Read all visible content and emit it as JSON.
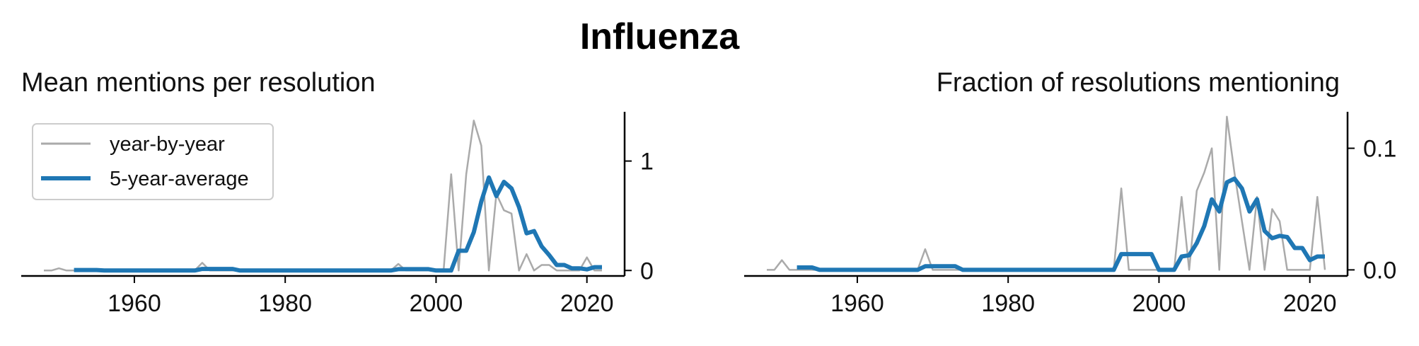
{
  "title": "Influenza",
  "chart_data": [
    {
      "type": "line",
      "title": "Mean mentions per resolution",
      "xlabel": "",
      "ylabel": "",
      "xlim": [
        1945,
        2025
      ],
      "ylim": [
        -0.05,
        1.45
      ],
      "x_ticks": [
        1960,
        1980,
        2000,
        2020
      ],
      "y_ticks": [
        0,
        1
      ],
      "y_tick_labels": [
        "0",
        "1"
      ],
      "y_axis_side": "right",
      "legend": {
        "placement": "top-left",
        "entries": [
          "year-by-year",
          "5-year-average"
        ]
      },
      "series": [
        {
          "name": "year-by-year",
          "color": "#aaaaaa",
          "x": [
            1948,
            1949,
            1950,
            1951,
            1952,
            1953,
            1954,
            1955,
            1956,
            1957,
            1958,
            1959,
            1960,
            1961,
            1962,
            1963,
            1964,
            1965,
            1966,
            1967,
            1968,
            1969,
            1970,
            1971,
            1972,
            1973,
            1974,
            1975,
            1976,
            1977,
            1978,
            1979,
            1980,
            1981,
            1982,
            1983,
            1984,
            1985,
            1986,
            1987,
            1988,
            1989,
            1990,
            1991,
            1992,
            1993,
            1994,
            1995,
            1996,
            1997,
            1998,
            1999,
            2000,
            2001,
            2002,
            2003,
            2004,
            2005,
            2006,
            2007,
            2008,
            2009,
            2010,
            2011,
            2012,
            2013,
            2014,
            2015,
            2016,
            2017,
            2018,
            2019,
            2020,
            2021,
            2022
          ],
          "values": [
            0,
            0,
            0.02,
            0,
            0,
            0,
            0,
            0,
            0,
            0,
            0,
            0,
            0,
            0,
            0,
            0,
            0,
            0,
            0,
            0,
            0,
            0.07,
            0,
            0,
            0,
            0,
            0,
            0,
            0,
            0,
            0,
            0,
            0,
            0,
            0,
            0,
            0,
            0,
            0,
            0,
            0,
            0,
            0,
            0,
            0,
            0,
            0,
            0.06,
            0,
            0,
            0,
            0,
            0,
            0,
            0.88,
            0,
            0.88,
            1.37,
            1.14,
            0,
            0.7,
            0.55,
            0.52,
            0,
            0.15,
            0,
            0.05,
            0.05,
            0,
            0,
            0,
            0,
            0.12,
            0,
            0
          ]
        },
        {
          "name": "5-year-average",
          "color": "#1f77b4",
          "x": [
            1952,
            1953,
            1954,
            1955,
            1956,
            1957,
            1958,
            1959,
            1960,
            1961,
            1962,
            1963,
            1964,
            1965,
            1966,
            1967,
            1968,
            1969,
            1970,
            1971,
            1972,
            1973,
            1974,
            1975,
            1976,
            1977,
            1978,
            1979,
            1980,
            1981,
            1982,
            1983,
            1984,
            1985,
            1986,
            1987,
            1988,
            1989,
            1990,
            1991,
            1992,
            1993,
            1994,
            1995,
            1996,
            1997,
            1998,
            1999,
            2000,
            2001,
            2002,
            2003,
            2004,
            2005,
            2006,
            2007,
            2008,
            2009,
            2010,
            2011,
            2012,
            2013,
            2014,
            2015,
            2016,
            2017,
            2018,
            2019,
            2020,
            2021,
            2022
          ],
          "values": [
            0.004,
            0.004,
            0.004,
            0.004,
            0,
            0,
            0,
            0,
            0,
            0,
            0,
            0,
            0,
            0,
            0,
            0,
            0,
            0.014,
            0.014,
            0.014,
            0.014,
            0.014,
            0,
            0,
            0,
            0,
            0,
            0,
            0,
            0,
            0,
            0,
            0,
            0,
            0,
            0,
            0,
            0,
            0,
            0,
            0,
            0,
            0,
            0.012,
            0.012,
            0.012,
            0.012,
            0.012,
            0,
            0,
            0,
            0.18,
            0.18,
            0.35,
            0.63,
            0.85,
            0.68,
            0.81,
            0.75,
            0.58,
            0.34,
            0.36,
            0.22,
            0.14,
            0.05,
            0.05,
            0.02,
            0.02,
            0.01,
            0.03,
            0.03
          ]
        }
      ]
    },
    {
      "type": "line",
      "title": "Fraction of resolutions mentioning",
      "xlabel": "",
      "ylabel": "",
      "xlim": [
        1945,
        2025
      ],
      "ylim": [
        -0.005,
        0.13
      ],
      "x_ticks": [
        1960,
        1980,
        2000,
        2020
      ],
      "y_ticks": [
        0,
        0.1
      ],
      "y_tick_labels": [
        "0.0",
        "0.1"
      ],
      "y_axis_side": "right",
      "series": [
        {
          "name": "year-by-year",
          "color": "#aaaaaa",
          "x": [
            1948,
            1949,
            1950,
            1951,
            1952,
            1953,
            1954,
            1955,
            1956,
            1957,
            1958,
            1959,
            1960,
            1961,
            1962,
            1963,
            1964,
            1965,
            1966,
            1967,
            1968,
            1969,
            1970,
            1971,
            1972,
            1973,
            1974,
            1975,
            1976,
            1977,
            1978,
            1979,
            1980,
            1981,
            1982,
            1983,
            1984,
            1985,
            1986,
            1987,
            1988,
            1989,
            1990,
            1991,
            1992,
            1993,
            1994,
            1995,
            1996,
            1997,
            1998,
            1999,
            2000,
            2001,
            2002,
            2003,
            2004,
            2005,
            2006,
            2007,
            2008,
            2009,
            2010,
            2011,
            2012,
            2013,
            2014,
            2015,
            2016,
            2017,
            2018,
            2019,
            2020,
            2021,
            2022
          ],
          "values": [
            0,
            0,
            0.008,
            0,
            0,
            0,
            0,
            0,
            0,
            0,
            0,
            0,
            0,
            0,
            0,
            0,
            0,
            0,
            0,
            0,
            0,
            0.017,
            0,
            0,
            0,
            0,
            0,
            0,
            0,
            0,
            0,
            0,
            0,
            0,
            0,
            0,
            0,
            0,
            0,
            0,
            0,
            0,
            0,
            0,
            0,
            0,
            0,
            0.067,
            0,
            0,
            0,
            0,
            0,
            0,
            0,
            0.06,
            0,
            0.065,
            0.08,
            0.1,
            0,
            0.126,
            0.08,
            0.04,
            0,
            0.06,
            0,
            0.05,
            0.04,
            0,
            0,
            0,
            0,
            0.06,
            0
          ]
        },
        {
          "name": "5-year-average",
          "color": "#1f77b4",
          "x": [
            1952,
            1953,
            1954,
            1955,
            1956,
            1957,
            1958,
            1959,
            1960,
            1961,
            1962,
            1963,
            1964,
            1965,
            1966,
            1967,
            1968,
            1969,
            1970,
            1971,
            1972,
            1973,
            1974,
            1975,
            1976,
            1977,
            1978,
            1979,
            1980,
            1981,
            1982,
            1983,
            1984,
            1985,
            1986,
            1987,
            1988,
            1989,
            1990,
            1991,
            1992,
            1993,
            1994,
            1995,
            1996,
            1997,
            1998,
            1999,
            2000,
            2001,
            2002,
            2003,
            2004,
            2005,
            2006,
            2007,
            2008,
            2009,
            2010,
            2011,
            2012,
            2013,
            2014,
            2015,
            2016,
            2017,
            2018,
            2019,
            2020,
            2021,
            2022
          ],
          "values": [
            0.002,
            0.002,
            0.002,
            0,
            0,
            0,
            0,
            0,
            0,
            0,
            0,
            0,
            0,
            0,
            0,
            0,
            0,
            0.003,
            0.003,
            0.003,
            0.003,
            0.003,
            0,
            0,
            0,
            0,
            0,
            0,
            0,
            0,
            0,
            0,
            0,
            0,
            0,
            0,
            0,
            0,
            0,
            0,
            0,
            0,
            0,
            0.013,
            0.013,
            0.013,
            0.013,
            0.013,
            0,
            0,
            0,
            0.011,
            0.012,
            0.022,
            0.036,
            0.058,
            0.048,
            0.072,
            0.075,
            0.067,
            0.048,
            0.058,
            0.032,
            0.026,
            0.028,
            0.027,
            0.018,
            0.018,
            0.008,
            0.011,
            0.011
          ]
        }
      ]
    }
  ]
}
